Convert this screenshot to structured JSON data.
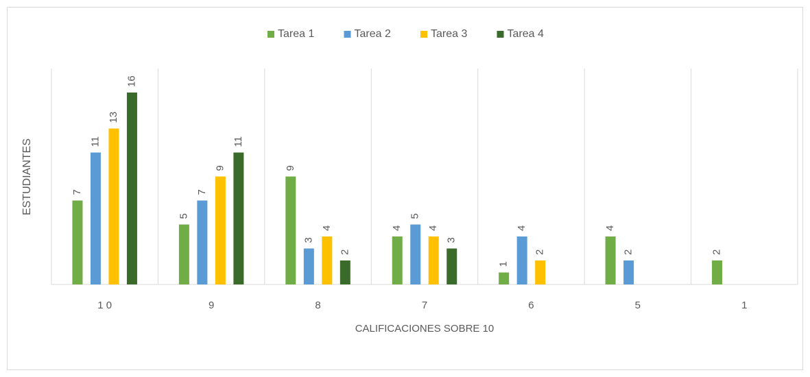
{
  "chart_data": {
    "type": "bar",
    "x_label": "CALIFICACIONES SOBRE 10",
    "y_label": "ESTUDIANTES",
    "categories": [
      "1 0",
      "9",
      "8",
      "7",
      "6",
      "5",
      "1"
    ],
    "series": [
      {
        "name": "Tarea 1",
        "color": "#70ad47",
        "values": [
          7,
          5,
          9,
          4,
          1,
          4,
          2
        ]
      },
      {
        "name": "Tarea 2",
        "color": "#5b9bd5",
        "values": [
          11,
          7,
          3,
          5,
          4,
          2,
          null
        ]
      },
      {
        "name": "Tarea 3",
        "color": "#ffc000",
        "values": [
          13,
          9,
          4,
          4,
          2,
          null,
          null
        ]
      },
      {
        "name": "Tarea 4",
        "color": "#3b6b2a",
        "values": [
          16,
          11,
          2,
          3,
          null,
          null,
          null
        ]
      }
    ],
    "ylim": [
      0,
      18
    ],
    "legend": "top"
  }
}
